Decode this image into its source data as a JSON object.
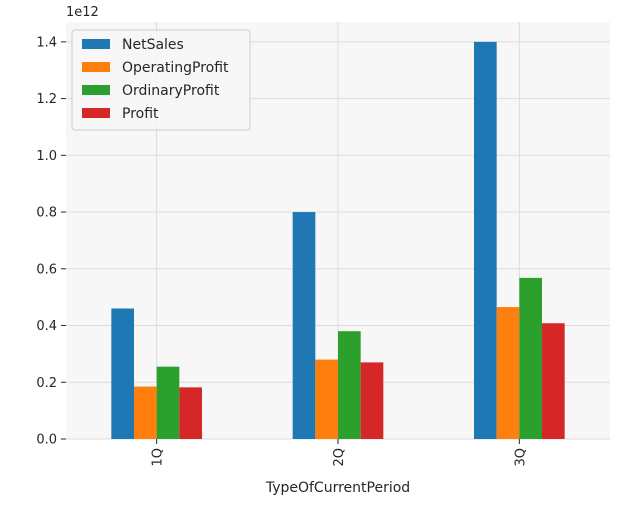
{
  "chart_data": {
    "type": "bar",
    "categories": [
      "1Q",
      "2Q",
      "3Q"
    ],
    "series": [
      {
        "name": "NetSales",
        "values": [
          460000000000.0,
          800000000000.0,
          1400000000000.0
        ],
        "color": "#1f77b4"
      },
      {
        "name": "OperatingProfit",
        "values": [
          185000000000.0,
          280000000000.0,
          465000000000.0
        ],
        "color": "#ff7f0e"
      },
      {
        "name": "OrdinaryProfit",
        "values": [
          255000000000.0,
          380000000000.0,
          568000000000.0
        ],
        "color": "#2ca02c"
      },
      {
        "name": "Profit",
        "values": [
          182000000000.0,
          270000000000.0,
          408000000000.0
        ],
        "color": "#d62728"
      }
    ],
    "title": "",
    "xlabel": "TypeOfCurrentPeriod",
    "ylabel": "",
    "ylim": [
      0,
      1470000000000.0
    ],
    "y_ticks": [
      0,
      200000000000.0,
      400000000000.0,
      600000000000.0,
      800000000000.0,
      1000000000000.0,
      1200000000000.0,
      1400000000000.0
    ],
    "y_tick_labels": [
      "0.0",
      "0.2",
      "0.4",
      "0.6",
      "0.8",
      "1.0",
      "1.2",
      "1.4"
    ],
    "y_offset_label": "1e12",
    "grid": true,
    "legend_position": "top-left",
    "background": "#f7f7f7",
    "grid_color": "#dcdcdc"
  }
}
